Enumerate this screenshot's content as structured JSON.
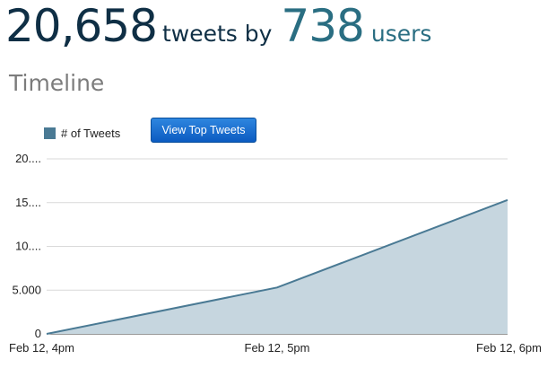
{
  "header": {
    "tweet_count": "20,658",
    "tweets_by_label": "tweets by",
    "user_count": "738",
    "users_label": "users"
  },
  "section_title": "Timeline",
  "button_label": "View Top Tweets",
  "colors": {
    "series": "#4a7a94",
    "fill": "#c6d6df",
    "button": "#1a6fd1",
    "dark": "#0f2f45",
    "teal": "#2a6e82"
  },
  "chart_data": {
    "type": "area",
    "x": [
      "Feb 12, 4pm",
      "Feb 12, 5pm",
      "Feb 12, 6pm"
    ],
    "ytick_labels": [
      "0",
      "5.000",
      "10....",
      "15....",
      "20...."
    ],
    "yticks": [
      0,
      5000,
      10000,
      15000,
      20000
    ],
    "ylim": [
      0,
      20000
    ],
    "grid": true,
    "legend_position": "top-left",
    "series": [
      {
        "name": "# of Tweets",
        "values": [
          0,
          5300,
          15300
        ]
      }
    ]
  }
}
